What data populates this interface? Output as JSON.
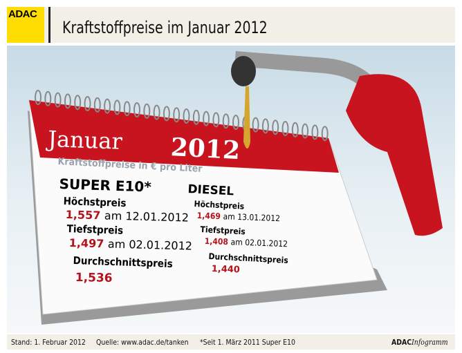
{
  "header": {
    "logo": "ADAC",
    "title": "Kraftstoffpreise im Januar 2012"
  },
  "calendar": {
    "month": "Januar",
    "year": "2012",
    "subtitle": "Kraftstoffpreise in € pro Liter"
  },
  "super": {
    "heading": "SUPER E10*",
    "max_label": "Höchstpreis",
    "max_value": "1,557",
    "max_date": "am 12.01.2012",
    "min_label": "Tiefstpreis",
    "min_value": "1,497",
    "min_date": "am 02.01.2012",
    "avg_label": "Durchschnittspreis",
    "avg_value": "1,536"
  },
  "diesel": {
    "heading": "DIESEL",
    "max_label": "Höchstpreis",
    "max_value": "1,469",
    "max_date": "am 13.01.2012",
    "min_label": "Tiefstpreis",
    "min_value": "1,408",
    "min_date": "am 02.01.2012",
    "avg_label": "Durchschnittspreis",
    "avg_value": "1,440"
  },
  "footer": {
    "stand": "Stand: 1. Februar 2012",
    "source": "Quelle: www.adac.de/tanken",
    "note": "*Seit 1. März 2011 Super E10",
    "brand": "ADAC",
    "brand_suffix": "Infogramm"
  },
  "colors": {
    "brand_yellow": "#ffdd00",
    "calendar_red": "#c8141e",
    "price_red": "#b3121b"
  }
}
